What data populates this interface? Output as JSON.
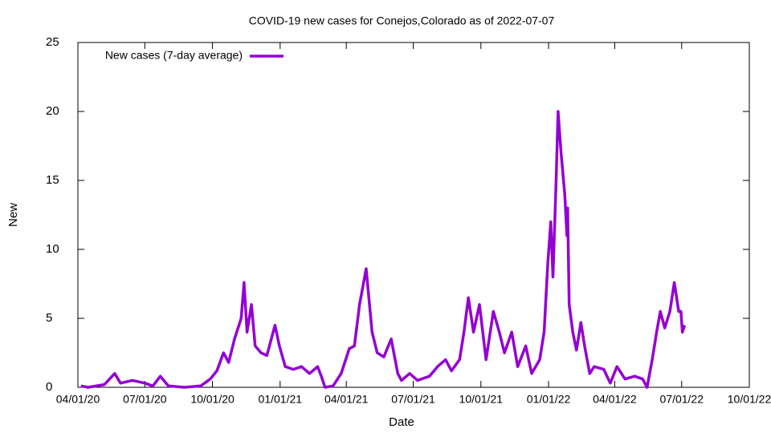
{
  "chart_data": {
    "type": "line",
    "title": "COVID-19 new cases for Conejos,Colorado as of 2022-07-07",
    "x_label": "Date",
    "y_label": "New",
    "legend": "top-left",
    "x": [
      "2020-04-05",
      "2020-04-15",
      "2020-05-07",
      "2020-05-21",
      "2020-05-29",
      "2020-06-14",
      "2020-07-01",
      "2020-07-12",
      "2020-07-22",
      "2020-08-02",
      "2020-08-24",
      "2020-09-15",
      "2020-09-28",
      "2020-10-07",
      "2020-10-16",
      "2020-10-23",
      "2020-10-31",
      "2020-11-09",
      "2020-11-13",
      "2020-11-17",
      "2020-11-23",
      "2020-11-28",
      "2020-12-06",
      "2020-12-14",
      "2020-12-25",
      "2020-12-31",
      "2021-01-08",
      "2021-01-19",
      "2021-01-30",
      "2021-02-10",
      "2021-02-21",
      "2021-02-26",
      "2021-03-03",
      "2021-03-14",
      "2021-03-25",
      "2021-04-05",
      "2021-04-12",
      "2021-04-19",
      "2021-04-28",
      "2021-05-06",
      "2021-05-13",
      "2021-05-22",
      "2021-06-01",
      "2021-06-10",
      "2021-06-15",
      "2021-06-26",
      "2021-07-07",
      "2021-07-23",
      "2021-08-03",
      "2021-08-14",
      "2021-08-22",
      "2021-09-02",
      "2021-09-08",
      "2021-09-14",
      "2021-09-21",
      "2021-09-29",
      "2021-10-08",
      "2021-10-18",
      "2021-10-26",
      "2021-11-02",
      "2021-11-12",
      "2021-11-20",
      "2021-12-01",
      "2021-12-09",
      "2021-12-20",
      "2021-12-26",
      "2021-12-31",
      "2022-01-04",
      "2022-01-07",
      "2022-01-11",
      "2022-01-14",
      "2022-01-18",
      "2022-01-23",
      "2022-01-26",
      "2022-01-27",
      "2022-01-29",
      "2022-02-03",
      "2022-02-08",
      "2022-02-14",
      "2022-02-19",
      "2022-02-26",
      "2022-03-04",
      "2022-03-17",
      "2022-03-26",
      "2022-04-04",
      "2022-04-15",
      "2022-04-28",
      "2022-05-09",
      "2022-05-15",
      "2022-05-22",
      "2022-05-28",
      "2022-06-02",
      "2022-06-08",
      "2022-06-15",
      "2022-06-21",
      "2022-06-27",
      "2022-06-30",
      "2022-07-02",
      "2022-07-05"
    ],
    "series": [
      {
        "name": "New cases (7-day average)",
        "color": "#9400d3",
        "values": [
          0.1,
          0,
          0.2,
          1.0,
          0.3,
          0.5,
          0.3,
          0.1,
          0.8,
          0.1,
          0,
          0.1,
          0.6,
          1.2,
          2.5,
          1.8,
          3.5,
          5,
          7.6,
          4,
          6,
          3,
          2.5,
          2.3,
          4.5,
          3,
          1.5,
          1.3,
          1.5,
          1,
          1.5,
          0.8,
          0,
          0.1,
          1,
          2.8,
          3,
          6,
          8.6,
          4,
          2.5,
          2.2,
          3.5,
          1,
          0.5,
          1,
          0.5,
          0.8,
          1.5,
          2,
          1.2,
          2,
          4,
          6.5,
          4,
          6,
          2,
          5.5,
          4,
          2.5,
          4,
          1.5,
          3,
          1,
          2,
          4,
          9,
          12,
          8,
          14.5,
          20,
          17,
          14,
          11,
          13,
          6,
          4,
          2.7,
          4.7,
          3,
          1,
          1.5,
          1.3,
          0.3,
          1.5,
          0.6,
          0.8,
          0.6,
          0,
          2,
          4,
          5.5,
          4.3,
          5.5,
          7.6,
          5.5,
          5.5,
          4,
          4.5
        ]
      }
    ],
    "xlim": [
      "2020-04-01",
      "2022-10-01"
    ],
    "xticks": [
      {
        "value": "2020-04-01",
        "label": "04/01/20"
      },
      {
        "value": "2020-07-01",
        "label": "07/01/20"
      },
      {
        "value": "2020-10-01",
        "label": "10/01/20"
      },
      {
        "value": "2021-01-01",
        "label": "01/01/21"
      },
      {
        "value": "2021-04-01",
        "label": "04/01/21"
      },
      {
        "value": "2021-07-01",
        "label": "07/01/21"
      },
      {
        "value": "2021-10-01",
        "label": "10/01/21"
      },
      {
        "value": "2022-01-01",
        "label": "01/01/22"
      },
      {
        "value": "2022-04-01",
        "label": "04/01/22"
      },
      {
        "value": "2022-07-01",
        "label": "07/01/22"
      },
      {
        "value": "2022-10-01",
        "label": "10/01/22"
      }
    ],
    "ylim": [
      0,
      25
    ],
    "yticks": [
      0,
      5,
      10,
      15,
      20,
      25
    ]
  }
}
